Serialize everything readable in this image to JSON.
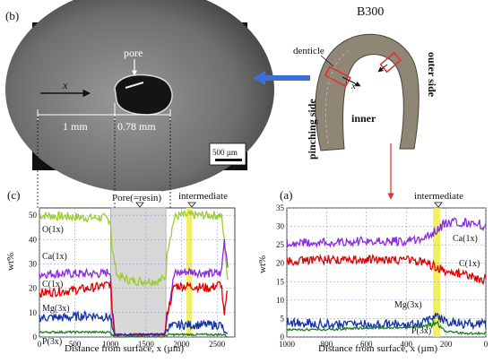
{
  "panel_b": {
    "label": "(b)",
    "micrograph": {
      "pore_label": "pore",
      "x_label": "x",
      "dim_1": "1 mm",
      "dim_2": "0.78 mm",
      "scalebar_label": "500 µm"
    },
    "specimen": {
      "title": "B300",
      "denticle_label": "denticle",
      "x_label": "x",
      "pinching_side": "pinching side",
      "outer_side": "outer side",
      "inner": "inner"
    }
  },
  "colors": {
    "O": "#9ACD32",
    "Ca": "#8A2BE2",
    "C": "#E00000",
    "Mg": "#1434A4",
    "P": "#1E7B1E",
    "intermediate_band": "#F0F060",
    "pore_band": "#D8D8D8",
    "arrow_blue": "#3E6FD6",
    "arrow_red": "#E03030"
  },
  "chart_data": [
    {
      "panel": "(c)",
      "type": "line",
      "xlabel": "Distance from surface, x (µm)",
      "ylabel": "wt%",
      "xlim": [
        0,
        2750
      ],
      "ylim": [
        0,
        53
      ],
      "xticks": [
        0,
        500,
        1000,
        1500,
        2000,
        2500
      ],
      "xtick_labels": [
        "0",
        "500",
        "1000",
        "1500",
        "2000",
        "2500"
      ],
      "yticks": [
        0,
        10,
        20,
        30,
        40,
        50
      ],
      "annotations": {
        "pore_region": {
          "label": "Pore(=resin)",
          "x": [
            1000,
            1780
          ]
        },
        "intermediate": {
          "label": "intermediate",
          "x": [
            2070,
            2150
          ]
        }
      },
      "series": [
        {
          "name": "O(1x)",
          "x": [
            0,
            700,
            900,
            1000,
            1020,
            1100,
            1300,
            1500,
            1700,
            1780,
            1800,
            1900,
            2000,
            2200,
            2400,
            2560,
            2600,
            2650
          ],
          "values": [
            50,
            49,
            49,
            48,
            36,
            25,
            23,
            23,
            23,
            25,
            36,
            49,
            50,
            50,
            50,
            50,
            40,
            22
          ]
        },
        {
          "name": "Ca(1x)",
          "x": [
            0,
            700,
            900,
            1000,
            1020,
            1060,
            1700,
            1760,
            1800,
            1900,
            2100,
            2400,
            2560,
            2600,
            2650
          ],
          "values": [
            26,
            26,
            26,
            27,
            12,
            1,
            1,
            1,
            10,
            26,
            27,
            26,
            26,
            40,
            30
          ]
        },
        {
          "name": "C(1x)",
          "x": [
            0,
            400,
            700,
            900,
            1000,
            1020,
            1060,
            1700,
            1760,
            1800,
            1900,
            2100,
            2400,
            2560,
            2600,
            2650
          ],
          "values": [
            18,
            19,
            20,
            21,
            22,
            12,
            1,
            1,
            1,
            10,
            21,
            21,
            20,
            22,
            8,
            20
          ]
        },
        {
          "name": "Mg(3x)",
          "x": [
            0,
            400,
            700,
            1000,
            1020,
            1060,
            1700,
            1760,
            1800,
            2000,
            2300,
            2560,
            2600,
            2650
          ],
          "values": [
            8,
            8,
            9,
            8,
            4,
            1,
            1,
            1,
            4,
            5,
            5,
            5,
            2,
            1
          ]
        },
        {
          "name": "P(3x)",
          "x": [
            0,
            400,
            700,
            1000,
            1020,
            1060,
            1700,
            1760,
            1800,
            2000,
            2300,
            2560,
            2600,
            2650
          ],
          "values": [
            2,
            2,
            2,
            2,
            1,
            0,
            0,
            0,
            1,
            1,
            1,
            1,
            1,
            0
          ]
        }
      ]
    },
    {
      "panel": "(a)",
      "type": "line",
      "xlabel": "Distance from surface, x (µm)",
      "ylabel": "wt%",
      "xlim": [
        1000,
        0
      ],
      "ylim": [
        0,
        35
      ],
      "xticks": [
        1000,
        800,
        600,
        400,
        200,
        0
      ],
      "xtick_labels": [
        "1000",
        "800",
        "600",
        "400",
        "200",
        "0"
      ],
      "yticks": [
        0,
        5,
        10,
        15,
        20,
        25,
        30,
        35
      ],
      "annotations": {
        "intermediate": {
          "label": "intermediate",
          "x": [
            265,
            230
          ]
        }
      },
      "series": [
        {
          "name": "Ca(1x)",
          "x": [
            1000,
            800,
            600,
            400,
            300,
            250,
            200,
            100,
            50,
            0
          ],
          "values": [
            25.5,
            25.5,
            26,
            26,
            27,
            29,
            31,
            31,
            31,
            30
          ]
        },
        {
          "name": "C(1x)",
          "x": [
            1000,
            800,
            600,
            400,
            300,
            250,
            200,
            100,
            50,
            0
          ],
          "values": [
            20.5,
            21,
            21,
            21,
            20,
            19,
            18,
            17,
            16,
            15.5
          ]
        },
        {
          "name": "Mg(3x)",
          "x": [
            1000,
            800,
            600,
            400,
            300,
            250,
            200,
            150,
            100,
            0
          ],
          "values": [
            4,
            3.5,
            3.5,
            3.5,
            4,
            6,
            4,
            4,
            3.5,
            3.5
          ]
        },
        {
          "name": "P(3x)",
          "x": [
            1000,
            800,
            600,
            400,
            300,
            260,
            230,
            200,
            100,
            0
          ],
          "values": [
            2,
            2,
            2.5,
            2.5,
            3,
            4,
            3,
            1.5,
            1,
            1
          ]
        }
      ]
    }
  ]
}
